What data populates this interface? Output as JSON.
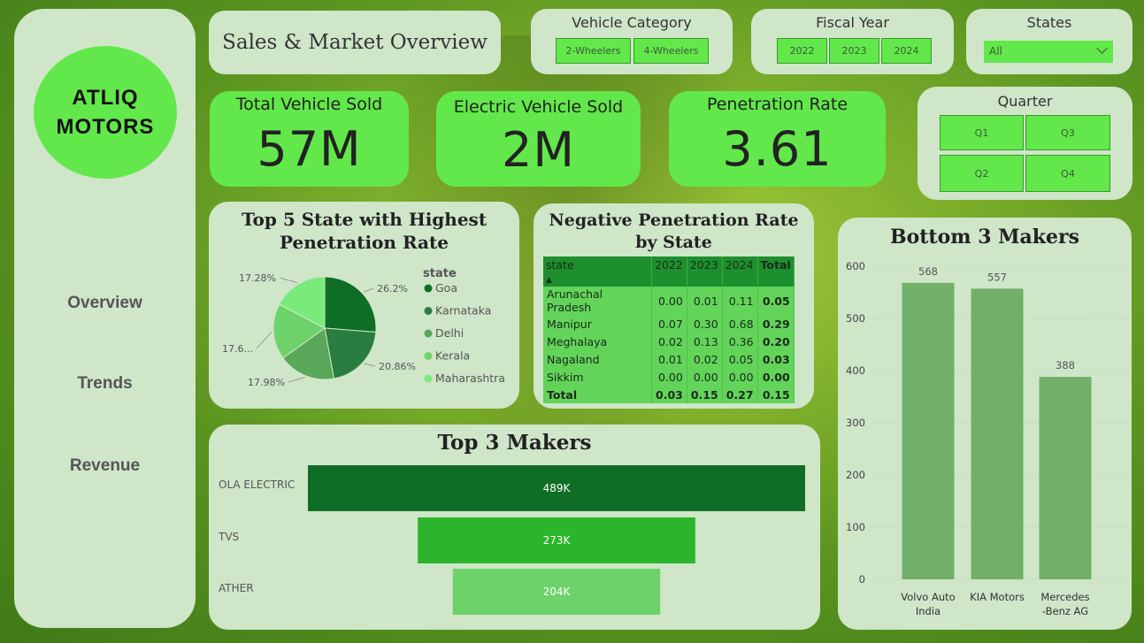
{
  "sidebar": {
    "logo_line1": "ATLIQ",
    "logo_line2": "MOTORS",
    "nav": [
      "Overview",
      "Trends",
      "Revenue"
    ]
  },
  "header": {
    "title": "Sales & Market Overview"
  },
  "slicers": {
    "vehicle_category": {
      "title": "Vehicle Category",
      "options": [
        "2-Wheelers",
        "4-Wheelers"
      ]
    },
    "fiscal_year": {
      "title": "Fiscal Year",
      "options": [
        "2022",
        "2023",
        "2024"
      ]
    },
    "states": {
      "title": "States",
      "selected": "All"
    },
    "quarter": {
      "title": "Quarter",
      "options": [
        "Q1",
        "Q3",
        "Q2",
        "Q4"
      ]
    }
  },
  "kpis": [
    {
      "label": "Total Vehicle Sold",
      "value": "57M"
    },
    {
      "label": "Electric Vehicle Sold",
      "value": "2M"
    },
    {
      "label": "Penetration Rate",
      "value": "3.61"
    }
  ],
  "colors": {
    "accent": "#62e84a",
    "card": "#cfe6c9",
    "dark_green": "#0f6e25",
    "bar_green": "#72b06a"
  },
  "chart_data": [
    {
      "type": "pie",
      "title": "Top 5 State with Highest Penetration Rate",
      "legend_title": "state",
      "legend_placement": "right",
      "categories": [
        "Goa",
        "Karnataka",
        "Delhi",
        "Kerala",
        "Maharashtra"
      ],
      "values": [
        26.2,
        20.86,
        17.98,
        17.6,
        17.28
      ],
      "value_labels": [
        "26.2%",
        "20.86%",
        "17.98%",
        "17.6...",
        "17.28%"
      ],
      "colors": [
        "#0f6e25",
        "#2a7d40",
        "#5aa85a",
        "#6ed26a",
        "#7aea7a"
      ]
    },
    {
      "type": "table",
      "title": "Negative Penetration Rate by State",
      "columns": [
        "state",
        "2022",
        "2023",
        "2024",
        "Total"
      ],
      "rows": [
        [
          "Arunachal Pradesh",
          "0.00",
          "0.01",
          "0.11",
          "0.05"
        ],
        [
          "Manipur",
          "0.07",
          "0.30",
          "0.68",
          "0.29"
        ],
        [
          "Meghalaya",
          "0.02",
          "0.13",
          "0.36",
          "0.20"
        ],
        [
          "Nagaland",
          "0.01",
          "0.02",
          "0.05",
          "0.03"
        ],
        [
          "Sikkim",
          "0.00",
          "0.00",
          "0.00",
          "0.00"
        ]
      ],
      "total_row": [
        "Total",
        "0.03",
        "0.15",
        "0.27",
        "0.15"
      ]
    },
    {
      "type": "bar",
      "orientation": "horizontal",
      "title": "Top 3 Makers",
      "categories": [
        "OLA ELECTRIC",
        "TVS",
        "ATHER"
      ],
      "values": [
        489,
        273,
        204
      ],
      "value_labels": [
        "489K",
        "273K",
        "204K"
      ],
      "colors": [
        "#0f6e25",
        "#2ab52a",
        "#6ed26a"
      ]
    },
    {
      "type": "bar",
      "title": "Bottom 3 Makers",
      "categories": [
        "Volvo Auto India",
        "KIA Motors",
        "Mercedes -Benz AG"
      ],
      "category_lines": [
        [
          "Volvo Auto",
          "India"
        ],
        [
          "KIA Motors"
        ],
        [
          "Mercedes",
          "-Benz AG"
        ]
      ],
      "values": [
        568,
        557,
        388
      ],
      "ylim": [
        0,
        600
      ],
      "yticks": [
        0,
        100,
        200,
        300,
        400,
        500,
        600
      ],
      "grid": true
    }
  ]
}
